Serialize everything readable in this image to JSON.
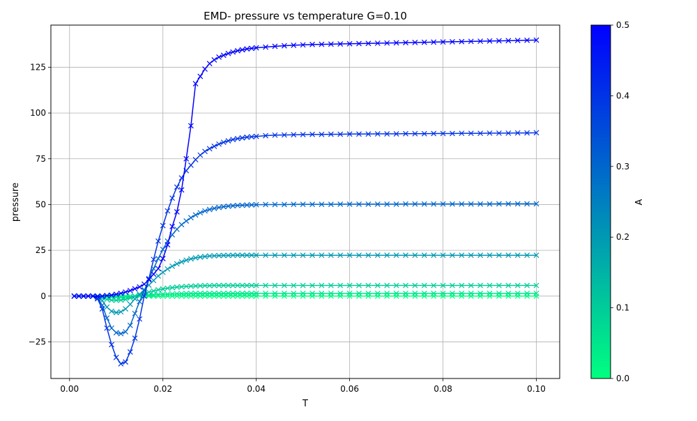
{
  "chart_data": {
    "type": "line",
    "title": "EMD- pressure vs temperature G=0.10",
    "xlabel": "T",
    "ylabel": "pressure",
    "xlim": [
      -0.004,
      0.105
    ],
    "ylim": [
      -45,
      148
    ],
    "xticks": [
      0.0,
      0.02,
      0.04,
      0.06,
      0.08,
      0.1
    ],
    "xtick_labels": [
      "0.00",
      "0.02",
      "0.04",
      "0.06",
      "0.08",
      "0.10"
    ],
    "yticks": [
      -25,
      0,
      25,
      50,
      75,
      100,
      125
    ],
    "ytick_labels": [
      "−25",
      "0",
      "25",
      "50",
      "75",
      "100",
      "125"
    ],
    "grid": true,
    "marker": "x",
    "colormap": "winter",
    "colorbar": {
      "label": "A",
      "range": [
        0.0,
        0.5
      ],
      "ticks": [
        0.0,
        0.1,
        0.2,
        0.3,
        0.4,
        0.5
      ],
      "tick_labels": [
        "0.0",
        "0.1",
        "0.2",
        "0.3",
        "0.4",
        "0.5"
      ],
      "color_low": "#00ff80",
      "color_high": "#0000ff"
    },
    "x": [
      0.001,
      0.002,
      0.003,
      0.004,
      0.005,
      0.006,
      0.007,
      0.008,
      0.009,
      0.01,
      0.011,
      0.012,
      0.013,
      0.014,
      0.015,
      0.016,
      0.017,
      0.018,
      0.019,
      0.02,
      0.021,
      0.022,
      0.023,
      0.024,
      0.025,
      0.026,
      0.027,
      0.028,
      0.029,
      0.03,
      0.031,
      0.032,
      0.033,
      0.034,
      0.035,
      0.036,
      0.037,
      0.038,
      0.039,
      0.04,
      0.042,
      0.044,
      0.046,
      0.048,
      0.05,
      0.052,
      0.054,
      0.056,
      0.058,
      0.06,
      0.062,
      0.064,
      0.066,
      0.068,
      0.07,
      0.072,
      0.074,
      0.076,
      0.078,
      0.08,
      0.082,
      0.084,
      0.086,
      0.088,
      0.09,
      0.092,
      0.094,
      0.096,
      0.098,
      0.1
    ],
    "series": [
      {
        "A": 0.0,
        "values": [
          0,
          0,
          0,
          0,
          0,
          0,
          0,
          0,
          0,
          0,
          0,
          0,
          0,
          0,
          0,
          0,
          0,
          0,
          0,
          0,
          0,
          0,
          0,
          0,
          0,
          0,
          0,
          0,
          0,
          0,
          0,
          0,
          0,
          0,
          0,
          0,
          0,
          0,
          0,
          0,
          0,
          0,
          0,
          0,
          0,
          0,
          0,
          0,
          0,
          0,
          0,
          0,
          0,
          0,
          0,
          0,
          0,
          0,
          0,
          0,
          0,
          0,
          0,
          0,
          0,
          0,
          0,
          0,
          0,
          0
        ]
      },
      {
        "A": 0.05,
        "values": [
          0,
          0,
          0,
          0,
          0,
          -0.1,
          -0.2,
          -0.4,
          -0.5,
          -0.6,
          -0.6,
          -0.5,
          -0.3,
          -0.1,
          0.1,
          0.3,
          0.5,
          0.7,
          0.9,
          1.0,
          1.1,
          1.2,
          1.3,
          1.35,
          1.4,
          1.45,
          1.5,
          1.5,
          1.5,
          1.5,
          1.5,
          1.5,
          1.5,
          1.5,
          1.5,
          1.5,
          1.5,
          1.5,
          1.5,
          1.5,
          1.5,
          1.5,
          1.5,
          1.5,
          1.5,
          1.5,
          1.5,
          1.5,
          1.5,
          1.5,
          1.5,
          1.5,
          1.5,
          1.5,
          1.5,
          1.5,
          1.5,
          1.5,
          1.5,
          1.5,
          1.5,
          1.5,
          1.5,
          1.5,
          1.5,
          1.5,
          1.5,
          1.5,
          1.5,
          1.5
        ]
      },
      {
        "A": 0.1,
        "values": [
          0,
          0,
          0,
          0,
          0,
          -0.3,
          -1.0,
          -1.8,
          -2.2,
          -2.3,
          -2.2,
          -1.8,
          -1.0,
          0.0,
          0.7,
          1.5,
          2.2,
          2.8,
          3.4,
          3.9,
          4.3,
          4.6,
          4.9,
          5.1,
          5.3,
          5.4,
          5.5,
          5.6,
          5.7,
          5.7,
          5.8,
          5.8,
          5.8,
          5.8,
          5.8,
          5.8,
          5.8,
          5.8,
          5.8,
          5.8,
          5.8,
          5.8,
          5.8,
          5.8,
          5.8,
          5.8,
          5.8,
          5.8,
          5.8,
          5.8,
          5.8,
          5.8,
          5.8,
          5.8,
          5.8,
          5.8,
          5.8,
          5.8,
          5.8,
          5.8,
          5.8,
          5.8,
          5.8,
          5.8,
          5.8,
          5.8,
          5.8,
          5.8,
          5.8,
          5.8
        ]
      },
      {
        "A": 0.2,
        "values": [
          0,
          0,
          0,
          0,
          0,
          -0.5,
          -2.5,
          -6.0,
          -8.3,
          -9.0,
          -8.6,
          -7.0,
          -4.5,
          -1.5,
          1.0,
          3.5,
          6.0,
          8.5,
          11.0,
          13.0,
          14.8,
          16.3,
          17.6,
          18.7,
          19.6,
          20.3,
          20.9,
          21.3,
          21.6,
          21.9,
          22.0,
          22.1,
          22.2,
          22.2,
          22.3,
          22.3,
          22.3,
          22.3,
          22.3,
          22.3,
          22.3,
          22.3,
          22.3,
          22.3,
          22.3,
          22.3,
          22.3,
          22.3,
          22.3,
          22.3,
          22.3,
          22.3,
          22.3,
          22.3,
          22.3,
          22.3,
          22.3,
          22.3,
          22.3,
          22.3,
          22.3,
          22.3,
          22.3,
          22.3,
          22.3,
          22.3,
          22.3,
          22.3,
          22.3,
          22.3
        ]
      },
      {
        "A": 0.3,
        "values": [
          0,
          0,
          0,
          0,
          0,
          -1.0,
          -5.0,
          -12.0,
          -17.5,
          -20.0,
          -20.5,
          -19.5,
          -16.0,
          -9.5,
          -3.0,
          3.0,
          9.0,
          15.0,
          20.5,
          25.5,
          30.0,
          33.5,
          36.5,
          39.0,
          41.0,
          42.8,
          44.3,
          45.5,
          46.5,
          47.3,
          47.9,
          48.4,
          48.8,
          49.1,
          49.3,
          49.5,
          49.6,
          49.7,
          49.8,
          49.9,
          50.0,
          50.0,
          50.0,
          50.1,
          50.1,
          50.1,
          50.1,
          50.1,
          50.2,
          50.2,
          50.2,
          50.2,
          50.2,
          50.2,
          50.2,
          50.3,
          50.3,
          50.3,
          50.3,
          50.3,
          50.3,
          50.3,
          50.3,
          50.3,
          50.3,
          50.4,
          50.4,
          50.4,
          50.4,
          50.4
        ]
      },
      {
        "A": 0.4,
        "values": [
          0,
          0,
          0,
          0,
          0,
          -1.5,
          -7.0,
          -17.5,
          -26.5,
          -33.5,
          -37.0,
          -36.0,
          -30.5,
          -23.0,
          -12.5,
          0.0,
          9.5,
          20.0,
          30.0,
          38.5,
          46.5,
          53.5,
          59.5,
          64.5,
          68.5,
          71.5,
          74.5,
          77.0,
          79.0,
          80.5,
          81.8,
          83.0,
          84.0,
          84.8,
          85.5,
          86.0,
          86.4,
          86.8,
          87.0,
          87.2,
          87.6,
          87.9,
          88.0,
          88.1,
          88.2,
          88.3,
          88.3,
          88.4,
          88.4,
          88.5,
          88.5,
          88.5,
          88.6,
          88.6,
          88.6,
          88.7,
          88.7,
          88.7,
          88.8,
          88.8,
          88.8,
          88.9,
          88.9,
          88.9,
          89.0,
          89.0,
          89.0,
          89.1,
          89.1,
          89.2
        ]
      },
      {
        "A": 0.5,
        "values": [
          0,
          0,
          0,
          0,
          0,
          0,
          0,
          0.3,
          0.5,
          1.0,
          1.5,
          2.2,
          3.0,
          4.0,
          5.0,
          6.5,
          9.0,
          12.0,
          15.0,
          20.5,
          28.0,
          38.0,
          46.0,
          58.0,
          75.0,
          93.0,
          116.0,
          120.0,
          124.0,
          127.0,
          129.0,
          130.5,
          131.5,
          132.5,
          133.3,
          134.0,
          134.5,
          135.0,
          135.3,
          135.6,
          136.0,
          136.4,
          136.7,
          137.0,
          137.2,
          137.4,
          137.5,
          137.6,
          137.7,
          137.8,
          137.9,
          138.0,
          138.1,
          138.2,
          138.3,
          138.4,
          138.5,
          138.6,
          138.7,
          138.8,
          138.9,
          139.0,
          139.1,
          139.2,
          139.3,
          139.4,
          139.5,
          139.6,
          139.7,
          139.8
        ]
      }
    ]
  }
}
